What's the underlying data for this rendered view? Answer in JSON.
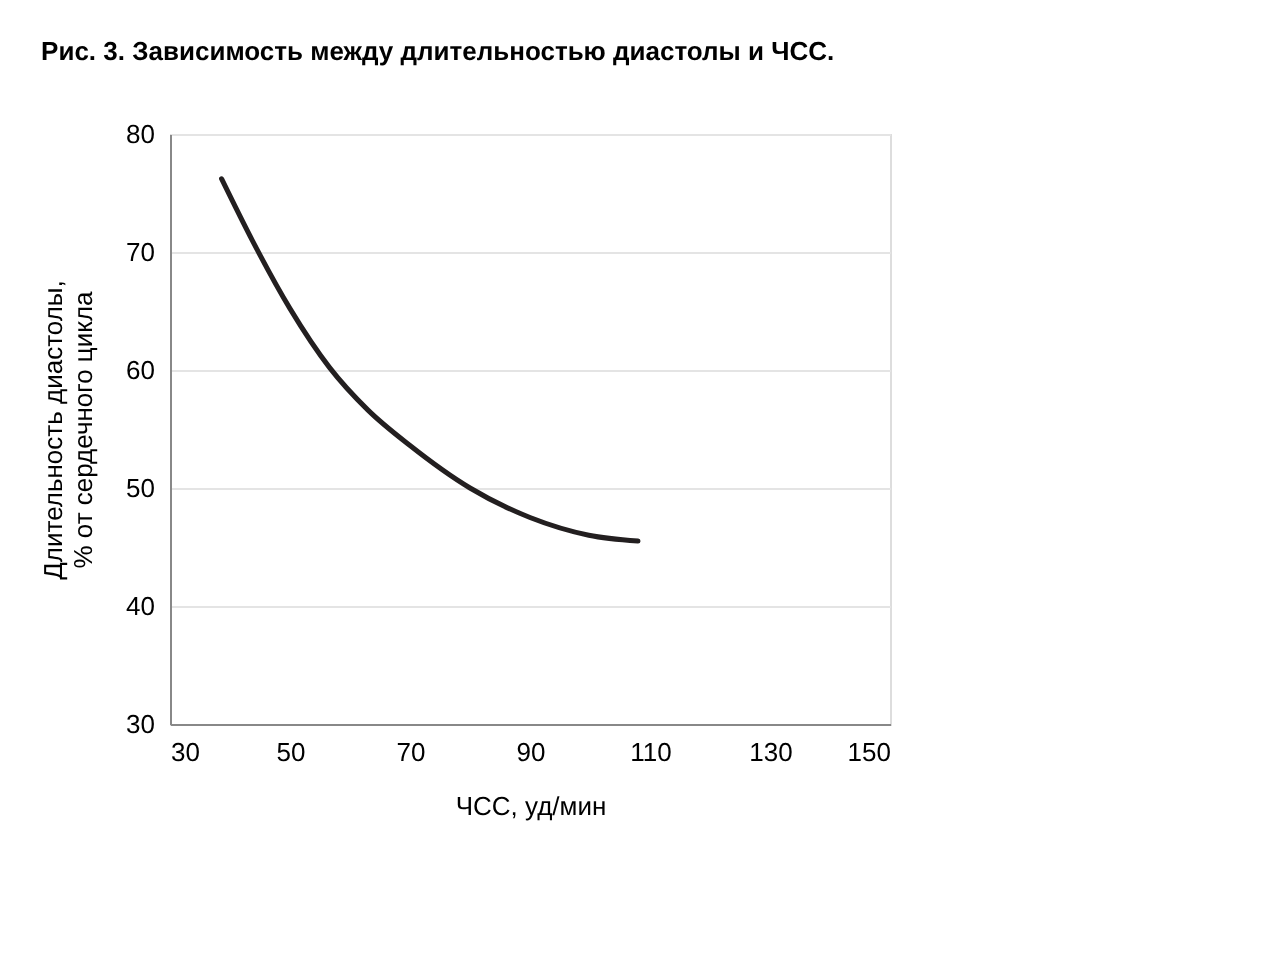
{
  "chart_data": {
    "type": "line",
    "title": "Рис. 3. Зависимость между длительностью диастолы и ЧСС.",
    "xlabel": "ЧСС, уд/мин",
    "ylabel": "Длительность диастолы,\n% от сердечного цикла",
    "x": [
      38.6,
      43.8,
      50,
      56.6,
      63,
      70,
      80,
      90,
      99.8,
      108
    ],
    "series": [
      {
        "color": "#231f20",
        "values": [
          76.2,
          70.9,
          65.2,
          60.2,
          56.6,
          53.6,
          50.0,
          47.5,
          46.0,
          45.5
        ]
      }
    ],
    "xlim": [
      30,
      150
    ],
    "xticks": [
      30,
      50,
      70,
      90,
      110,
      130,
      150
    ],
    "ylim": [
      30,
      80
    ],
    "yticks": [
      30,
      40,
      50,
      60,
      70,
      80
    ],
    "grid": "y",
    "marker": "none",
    "line_style": "solid"
  }
}
